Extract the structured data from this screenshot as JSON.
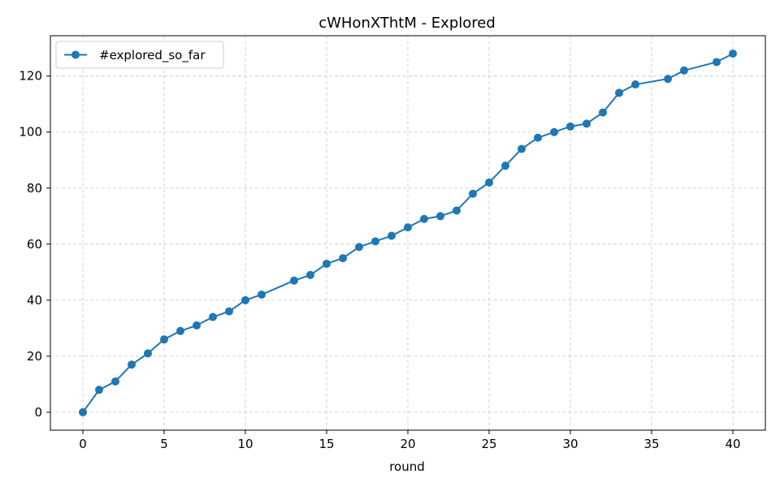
{
  "chart_data": {
    "type": "line",
    "title": "cWHonXThtM - Explored",
    "xlabel": "round",
    "ylabel": "",
    "xlim": [
      -2,
      42
    ],
    "ylim": [
      -6.4,
      134.4
    ],
    "xticks": [
      0,
      5,
      10,
      15,
      20,
      25,
      30,
      35,
      40
    ],
    "yticks": [
      0,
      20,
      40,
      60,
      80,
      100,
      120
    ],
    "grid": true,
    "legend_position": "top-left",
    "series": [
      {
        "name": "#explored_so_far",
        "color": "#1f77b4",
        "marker": "circle",
        "x": [
          0,
          1,
          2,
          3,
          4,
          5,
          6,
          7,
          8,
          9,
          10,
          11,
          13,
          14,
          15,
          16,
          17,
          18,
          19,
          20,
          21,
          22,
          23,
          24,
          25,
          26,
          27,
          28,
          29,
          30,
          31,
          32,
          33,
          34,
          36,
          37,
          39,
          40
        ],
        "y": [
          0,
          8,
          11,
          17,
          21,
          26,
          29,
          31,
          34,
          36,
          40,
          42,
          47,
          49,
          53,
          55,
          59,
          61,
          63,
          66,
          69,
          70,
          72,
          78,
          82,
          88,
          94,
          98,
          100,
          102,
          103,
          107,
          114,
          117,
          119,
          122,
          125,
          128
        ]
      }
    ]
  }
}
